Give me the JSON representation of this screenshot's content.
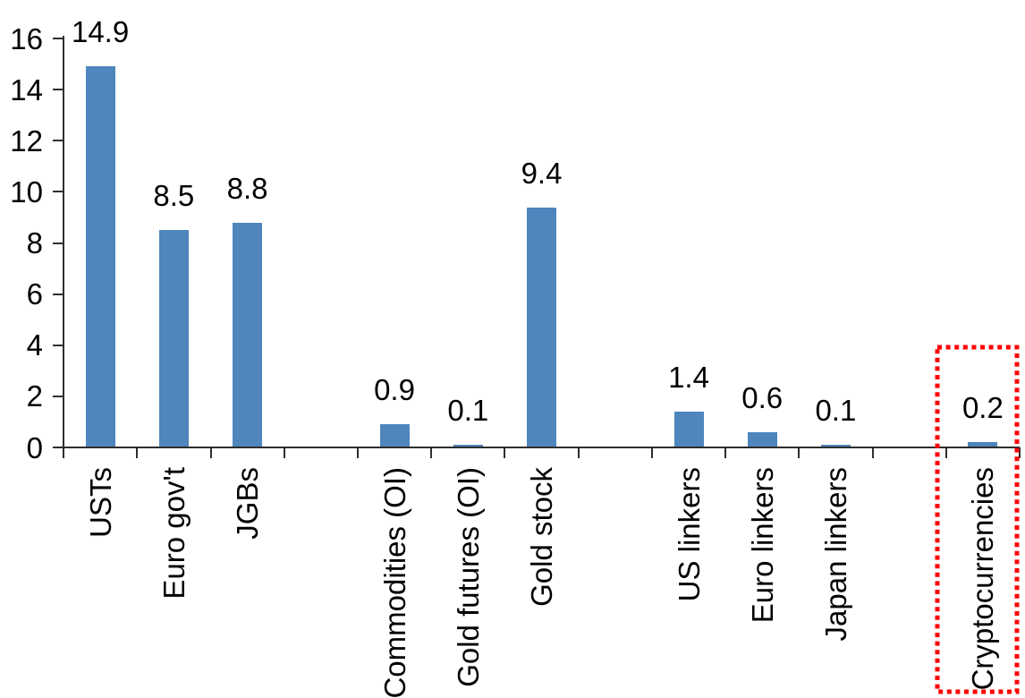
{
  "chart_data": {
    "type": "bar",
    "title": "",
    "xlabel": "",
    "ylabel": "",
    "categories": [
      "USTs",
      "Euro gov't",
      "JGBs",
      "Commodities (OI)",
      "Gold futures (OI)",
      "Gold stock",
      "US linkers",
      "Euro linkers",
      "Japan linkers",
      "Cryptocurrencies"
    ],
    "values": [
      14.9,
      8.5,
      8.8,
      0.9,
      0.1,
      9.4,
      1.4,
      0.6,
      0.1,
      0.2
    ],
    "value_labels": [
      "14.9",
      "8.5",
      "8.8",
      "0.9",
      "0.1",
      "9.4",
      "1.4",
      "0.6",
      "0.1",
      "0.2"
    ],
    "slots": [
      0,
      1,
      2,
      4,
      5,
      6,
      8,
      9,
      10,
      12
    ],
    "total_slots": 13,
    "ylim": [
      0,
      16
    ],
    "ytick_step": 2,
    "yticks": [
      "0",
      "2",
      "4",
      "6",
      "8",
      "10",
      "12",
      "14",
      "16"
    ],
    "grid": false,
    "legend": false,
    "data_label_position": "outside-end",
    "category_label_rotation_deg": -90,
    "bar_color": "#4E86BD",
    "axis_color": "#2e2e2e",
    "text_color": "#000000",
    "highlight": {
      "category": "Cryptocurrencies",
      "style": "dotted-rectangle",
      "color": "#FF0000"
    }
  }
}
